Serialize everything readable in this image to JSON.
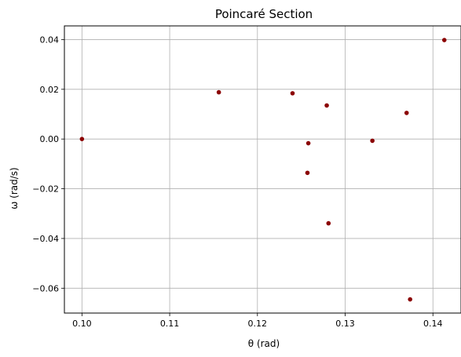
{
  "chart_data": {
    "type": "scatter",
    "title": "Poincaré Section",
    "xlabel": "θ (rad)",
    "ylabel": "ω (rad/s)",
    "xlim": [
      0.098,
      0.1432
    ],
    "ylim": [
      -0.07,
      0.0455
    ],
    "xticks": [
      0.1,
      0.11,
      0.12,
      0.13,
      0.14
    ],
    "xtick_labels": [
      "0.10",
      "0.11",
      "0.12",
      "0.13",
      "0.14"
    ],
    "yticks": [
      -0.06,
      -0.04,
      -0.02,
      0.0,
      0.02,
      0.04
    ],
    "ytick_labels": [
      "−0.06",
      "−0.04",
      "−0.02",
      "0.00",
      "0.02",
      "0.04"
    ],
    "grid": true,
    "marker_color": "#8b0000",
    "points": [
      {
        "x": 0.1,
        "y": 0.0
      },
      {
        "x": 0.1156,
        "y": 0.0188
      },
      {
        "x": 0.124,
        "y": 0.0184
      },
      {
        "x": 0.1279,
        "y": 0.0135
      },
      {
        "x": 0.1258,
        "y": -0.0017
      },
      {
        "x": 0.1257,
        "y": -0.0136
      },
      {
        "x": 0.1281,
        "y": -0.0339
      },
      {
        "x": 0.1331,
        "y": -0.0007
      },
      {
        "x": 0.137,
        "y": 0.0105
      },
      {
        "x": 0.1374,
        "y": -0.0645
      },
      {
        "x": 0.1413,
        "y": 0.0398
      }
    ]
  }
}
